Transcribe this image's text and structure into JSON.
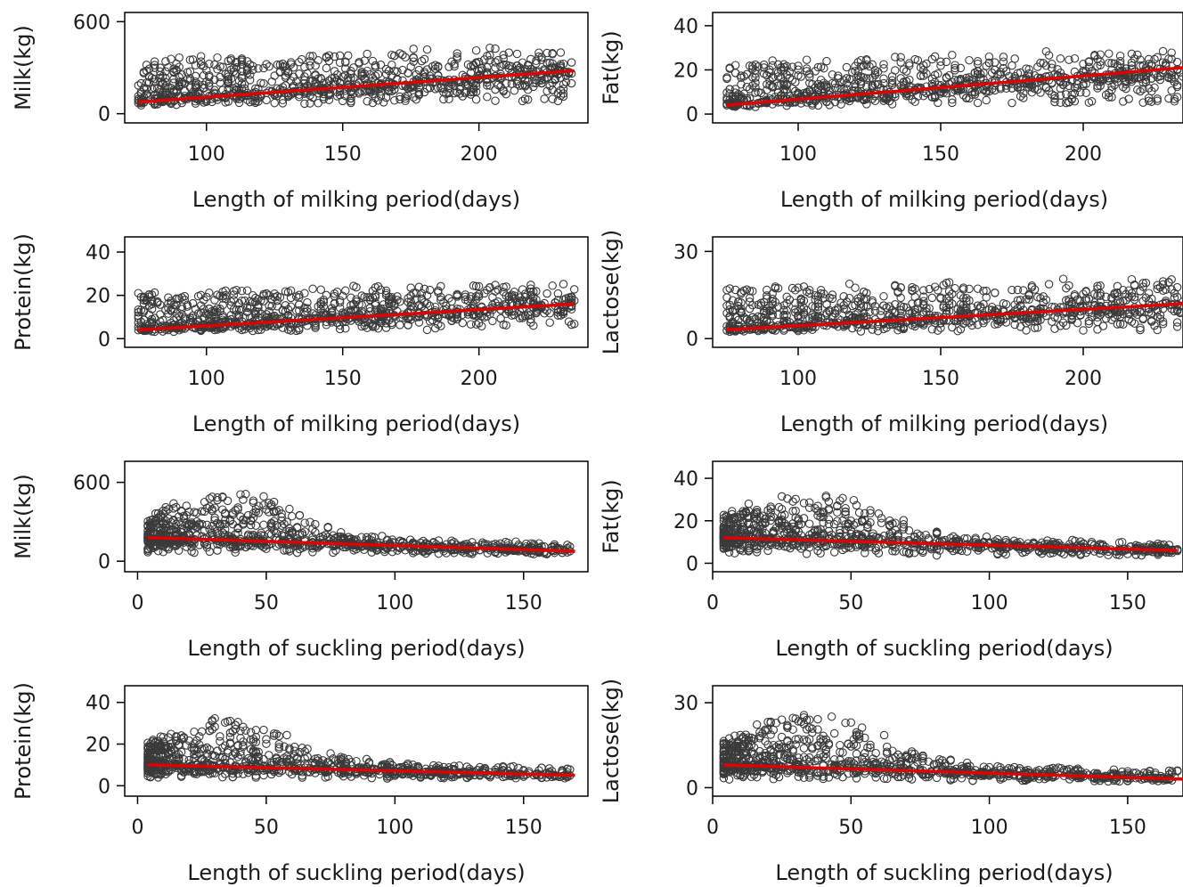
{
  "colors": {
    "points": "#3a3a3a",
    "fit_line": "#e00000",
    "axis": "#000000"
  },
  "chart_data": [
    {
      "type": "scatter",
      "panel": "row1-left",
      "xlabel": "Length of milking period(days)",
      "ylabel": "Milk(kg)",
      "xlim": [
        70,
        240
      ],
      "ylim": [
        -60,
        660
      ],
      "xticks": [
        100,
        150,
        200
      ],
      "yticks": [
        0,
        600
      ],
      "x_range": [
        75,
        235
      ],
      "y_min": 50,
      "y_max": 620,
      "fit_line": [
        [
          75,
          75
        ],
        [
          235,
          280
        ]
      ],
      "grid": false
    },
    {
      "type": "scatter",
      "panel": "row1-right",
      "xlabel": "Length of milking period(days)",
      "ylabel": "Fat(kg)",
      "xlim": [
        70,
        235
      ],
      "ylim": [
        -4,
        46
      ],
      "xticks": [
        100,
        150,
        200
      ],
      "yticks": [
        0,
        20,
        40
      ],
      "x_range": [
        75,
        235
      ],
      "y_min": 3,
      "y_max": 40,
      "fit_line": [
        [
          75,
          4
        ],
        [
          235,
          21
        ]
      ],
      "grid": false
    },
    {
      "type": "scatter",
      "panel": "row2-left",
      "xlabel": "Length of milking period(days)",
      "ylabel": "Protein(kg)",
      "xlim": [
        70,
        240
      ],
      "ylim": [
        -4,
        47
      ],
      "xticks": [
        100,
        150,
        200
      ],
      "yticks": [
        0,
        20,
        40
      ],
      "x_range": [
        75,
        235
      ],
      "y_min": 3,
      "y_max": 37,
      "fit_line": [
        [
          75,
          4
        ],
        [
          235,
          16
        ]
      ],
      "grid": false
    },
    {
      "type": "scatter",
      "panel": "row2-right",
      "xlabel": "Length of milking period(days)",
      "ylabel": "Lactose(kg)",
      "xlim": [
        70,
        235
      ],
      "ylim": [
        -3,
        35
      ],
      "xticks": [
        100,
        150,
        200
      ],
      "yticks": [
        0,
        30
      ],
      "x_range": [
        75,
        235
      ],
      "y_min": 2,
      "y_max": 30,
      "fit_line": [
        [
          75,
          3
        ],
        [
          235,
          12
        ]
      ],
      "grid": false
    },
    {
      "type": "scatter",
      "panel": "row3-left",
      "xlabel": "Length of suckling period(days)",
      "ylabel": "Milk(kg)",
      "xlim": [
        -5,
        175
      ],
      "ylim": [
        -80,
        760
      ],
      "xticks": [
        0,
        50,
        100,
        150
      ],
      "yticks": [
        0,
        600
      ],
      "x_range": [
        4,
        168
      ],
      "y_min": 50,
      "y_max": 620,
      "fit_line": [
        [
          4,
          180
        ],
        [
          170,
          75
        ]
      ],
      "grid": false
    },
    {
      "type": "scatter",
      "panel": "row3-right",
      "xlabel": "Length of suckling period(days)",
      "ylabel": "Fat(kg)",
      "xlim": [
        0,
        170
      ],
      "ylim": [
        -4,
        48
      ],
      "xticks": [
        0,
        50,
        100,
        150
      ],
      "yticks": [
        0,
        20,
        40
      ],
      "x_range": [
        4,
        168
      ],
      "y_min": 3,
      "y_max": 38,
      "fit_line": [
        [
          4,
          12
        ],
        [
          168,
          6
        ]
      ],
      "grid": false
    },
    {
      "type": "scatter",
      "panel": "row4-left",
      "xlabel": "Length of suckling period(days)",
      "ylabel": "Protein(kg)",
      "xlim": [
        -5,
        175
      ],
      "ylim": [
        -5,
        48
      ],
      "xticks": [
        0,
        50,
        100,
        150
      ],
      "yticks": [
        0,
        20,
        40
      ],
      "x_range": [
        4,
        168
      ],
      "y_min": 3,
      "y_max": 37,
      "fit_line": [
        [
          4,
          10
        ],
        [
          170,
          5
        ]
      ],
      "grid": false
    },
    {
      "type": "scatter",
      "panel": "row4-right",
      "xlabel": "Length of suckling period(days)",
      "ylabel": "Lactose(kg)",
      "xlim": [
        0,
        170
      ],
      "ylim": [
        -3,
        36
      ],
      "xticks": [
        0,
        50,
        100,
        150
      ],
      "yticks": [
        0,
        30
      ],
      "x_range": [
        4,
        168
      ],
      "y_min": 2,
      "y_max": 30,
      "fit_line": [
        [
          4,
          8
        ],
        [
          170,
          3
        ]
      ],
      "grid": false
    }
  ]
}
